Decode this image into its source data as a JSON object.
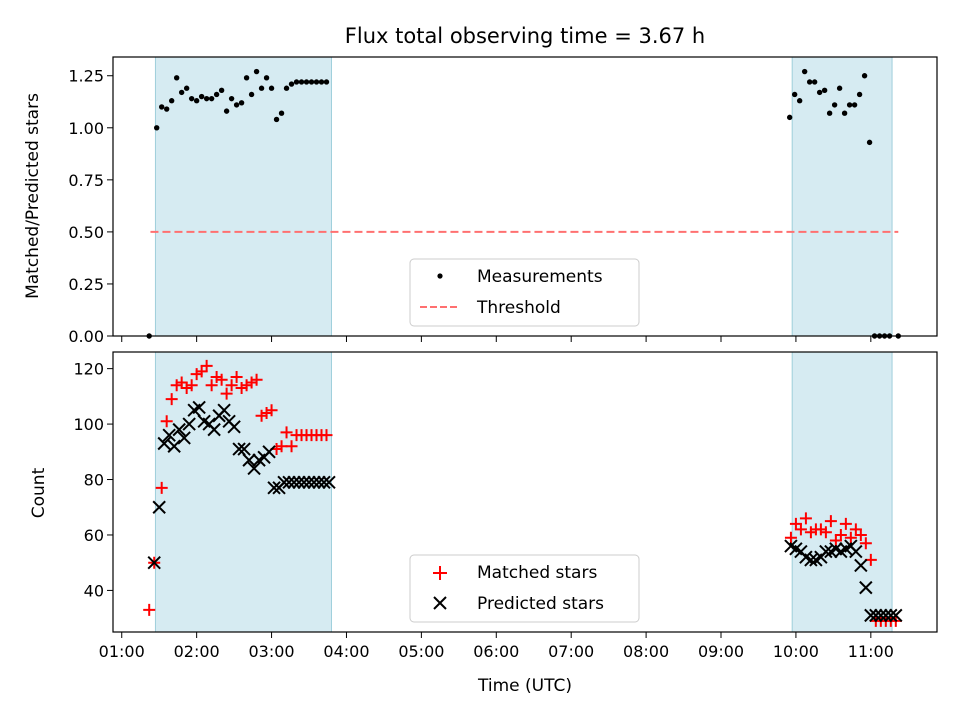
{
  "title": "Flux total observing time = 3.67 h",
  "chart_data": [
    {
      "type": "scatter",
      "ylabel": "Matched/Predicted stars",
      "xlim": [
        "00:53",
        "11:53"
      ],
      "ylim": [
        0,
        1.34
      ],
      "yticks": [
        0.0,
        0.25,
        0.5,
        0.75,
        1.0,
        1.25
      ],
      "ytick_labels": [
        "0.00",
        "0.25",
        "0.50",
        "0.75",
        "1.00",
        "1.25"
      ],
      "shaded_spans": [
        [
          "01:27",
          "03:48"
        ],
        [
          "09:57",
          "11:17"
        ]
      ],
      "threshold": 0.5,
      "legend_position": "lower center",
      "series": [
        {
          "name": "Measurements",
          "marker": "dot",
          "color": "#000000",
          "x": [
            "01:22",
            "01:28",
            "01:32",
            "01:36",
            "01:40",
            "01:44",
            "01:48",
            "01:52",
            "01:56",
            "02:00",
            "02:04",
            "02:08",
            "02:12",
            "02:16",
            "02:20",
            "02:24",
            "02:28",
            "02:32",
            "02:36",
            "02:40",
            "02:44",
            "02:48",
            "02:52",
            "02:56",
            "03:00",
            "03:04",
            "03:08",
            "03:12",
            "03:16",
            "03:20",
            "03:24",
            "03:28",
            "03:32",
            "03:36",
            "03:40",
            "03:44",
            "09:55",
            "09:59",
            "10:03",
            "10:07",
            "10:11",
            "10:15",
            "10:19",
            "10:23",
            "10:27",
            "10:31",
            "10:35",
            "10:39",
            "10:43",
            "10:47",
            "10:51",
            "10:55",
            "10:59",
            "11:03",
            "11:07",
            "11:11",
            "11:15",
            "11:22"
          ],
          "y": [
            0.0,
            1.0,
            1.1,
            1.09,
            1.13,
            1.24,
            1.17,
            1.19,
            1.14,
            1.13,
            1.15,
            1.14,
            1.14,
            1.16,
            1.18,
            1.08,
            1.14,
            1.11,
            1.12,
            1.24,
            1.16,
            1.27,
            1.19,
            1.24,
            1.19,
            1.04,
            1.07,
            1.19,
            1.21,
            1.22,
            1.22,
            1.22,
            1.22,
            1.22,
            1.22,
            1.22,
            1.05,
            1.16,
            1.13,
            1.27,
            1.22,
            1.22,
            1.17,
            1.18,
            1.07,
            1.11,
            1.19,
            1.07,
            1.11,
            1.11,
            1.16,
            1.25,
            0.93,
            0.0,
            0.0,
            0.0,
            0.0,
            0.0
          ]
        },
        {
          "name": "Threshold",
          "marker": "dashed-line",
          "color": "#ff7070",
          "x": [
            "01:23",
            "11:22"
          ],
          "y": [
            0.5,
            0.5
          ]
        }
      ]
    },
    {
      "type": "scatter",
      "ylabel": "Count",
      "xlabel": "Time (UTC)",
      "xlim": [
        "00:53",
        "11:53"
      ],
      "ylim": [
        25,
        126
      ],
      "yticks": [
        40,
        60,
        80,
        100,
        120
      ],
      "ytick_labels": [
        "40",
        "60",
        "80",
        "100",
        "120"
      ],
      "xticks": [
        "01:00",
        "02:00",
        "03:00",
        "04:00",
        "05:00",
        "06:00",
        "07:00",
        "08:00",
        "09:00",
        "10:00",
        "11:00"
      ],
      "shaded_spans": [
        [
          "01:27",
          "03:48"
        ],
        [
          "09:57",
          "11:17"
        ]
      ],
      "legend_position": "lower center",
      "series": [
        {
          "name": "Matched stars",
          "marker": "plus",
          "color": "#ff0000",
          "x": [
            "01:22",
            "01:26",
            "01:32",
            "01:36",
            "01:40",
            "01:44",
            "01:48",
            "01:52",
            "01:56",
            "02:00",
            "02:04",
            "02:08",
            "02:12",
            "02:16",
            "02:20",
            "02:24",
            "02:28",
            "02:32",
            "02:36",
            "02:40",
            "02:44",
            "02:48",
            "02:52",
            "02:56",
            "03:00",
            "03:04",
            "03:08",
            "03:12",
            "03:16",
            "03:20",
            "03:24",
            "03:28",
            "03:32",
            "03:36",
            "03:40",
            "03:44",
            "09:56",
            "10:00",
            "10:04",
            "10:08",
            "10:12",
            "10:16",
            "10:20",
            "10:24",
            "10:28",
            "10:32",
            "10:36",
            "10:40",
            "10:44",
            "10:48",
            "10:52",
            "10:56",
            "11:00",
            "11:04",
            "11:08",
            "11:12",
            "11:16",
            "11:20"
          ],
          "y": [
            33,
            50,
            77,
            101,
            109,
            114,
            115,
            113,
            114,
            118,
            119,
            121,
            114,
            117,
            116,
            111,
            114,
            117,
            113,
            114,
            115,
            116,
            103,
            104,
            105,
            91,
            92,
            97,
            92,
            96,
            96,
            96,
            96,
            96,
            96,
            96,
            59,
            64,
            62,
            66,
            61,
            62,
            62,
            61,
            65,
            58,
            60,
            64,
            59,
            62,
            60,
            57,
            51,
            29,
            29,
            29,
            29,
            29
          ],
          "count_note": "plotted"
        },
        {
          "name": "Predicted stars",
          "marker": "x",
          "color": "#000000",
          "x": [
            "01:26",
            "01:30",
            "01:34",
            "01:38",
            "01:42",
            "01:46",
            "01:50",
            "01:54",
            "01:58",
            "02:02",
            "02:06",
            "02:10",
            "02:14",
            "02:18",
            "02:22",
            "02:26",
            "02:30",
            "02:34",
            "02:38",
            "02:42",
            "02:46",
            "02:50",
            "02:54",
            "02:58",
            "03:02",
            "03:06",
            "03:10",
            "03:14",
            "03:18",
            "03:22",
            "03:26",
            "03:30",
            "03:34",
            "03:38",
            "03:42",
            "03:46",
            "09:56",
            "10:00",
            "10:04",
            "10:08",
            "10:12",
            "10:16",
            "10:20",
            "10:24",
            "10:28",
            "10:32",
            "10:36",
            "10:40",
            "10:44",
            "10:48",
            "10:52",
            "10:56",
            "11:00",
            "11:04",
            "11:08",
            "11:12",
            "11:16",
            "11:20"
          ],
          "y": [
            50,
            70,
            93,
            96,
            92,
            98,
            95,
            100,
            105,
            106,
            101,
            100,
            98,
            103,
            105,
            101,
            99,
            91,
            91,
            87,
            84,
            87,
            88,
            90,
            77,
            77,
            79,
            79,
            79,
            79,
            79,
            79,
            79,
            79,
            79,
            79,
            56,
            55,
            54,
            52,
            51,
            51,
            52,
            54,
            54,
            55,
            54,
            55,
            56,
            54,
            49,
            41,
            31,
            31,
            31,
            31,
            31,
            31
          ]
        }
      ]
    }
  ]
}
